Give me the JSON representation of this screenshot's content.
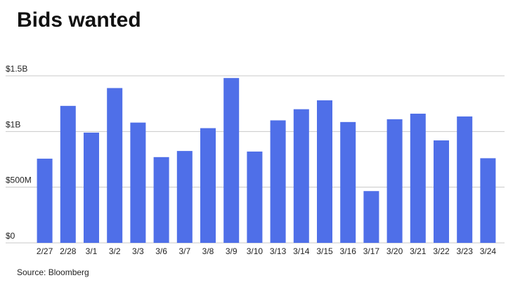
{
  "chart_data": {
    "type": "bar",
    "title": "Bids wanted",
    "source": "Source: Bloomberg",
    "categories": [
      "2/27",
      "2/28",
      "3/1",
      "3/2",
      "3/3",
      "3/6",
      "3/7",
      "3/8",
      "3/9",
      "3/10",
      "3/13",
      "3/14",
      "3/15",
      "3/16",
      "3/17",
      "3/20",
      "3/21",
      "3/22",
      "3/23",
      "3/24"
    ],
    "values": [
      756000000,
      1230000000,
      990000000,
      1390000000,
      1080000000,
      770000000,
      825000000,
      1030000000,
      1480000000,
      820000000,
      1100000000,
      1200000000,
      1280000000,
      1085000000,
      465000000,
      1110000000,
      1160000000,
      920000000,
      1135000000,
      760000000
    ],
    "color": "#4f6fe8",
    "ylim": [
      0,
      1500000000
    ],
    "yticks": [
      {
        "value": 0,
        "label": "$0"
      },
      {
        "value": 500000000,
        "label": "$500M"
      },
      {
        "value": 1000000000,
        "label": "$1B"
      },
      {
        "value": 1500000000,
        "label": "$1.5B"
      }
    ],
    "grid": true
  }
}
